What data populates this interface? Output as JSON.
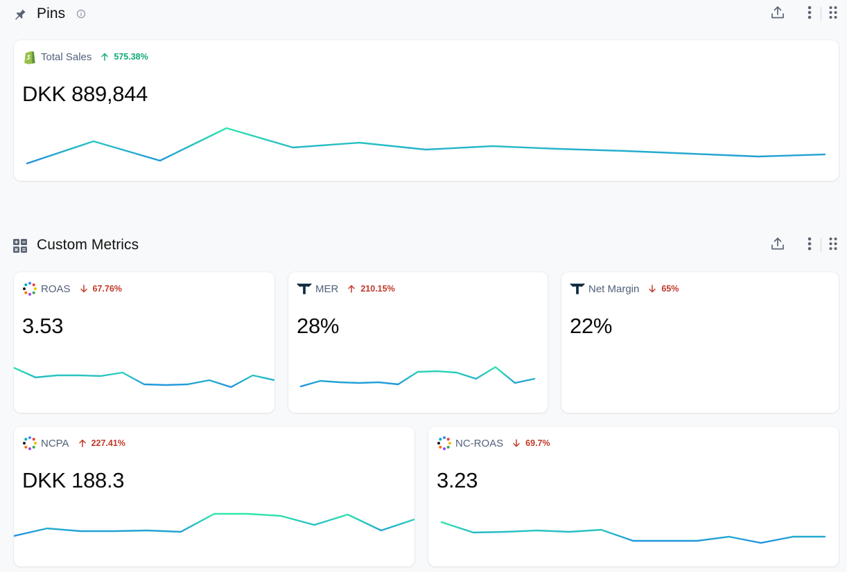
{
  "pins": {
    "title": "Pins",
    "icons": {
      "section": "pin-icon",
      "info": "info-icon"
    }
  },
  "custom_metrics": {
    "title": "Custom Metrics",
    "icons": {
      "section": "calculator-icon"
    }
  },
  "header_actions": {
    "export_icon": "upload-icon",
    "menu_icon": "kebab-menu-icon",
    "drag_icon": "drag-handle-icon"
  },
  "colors": {
    "spark_start": "#1f8fe0",
    "spark_end": "#2ee6aa",
    "positive": "#12a97a",
    "negative": "#c0392b"
  },
  "metrics": {
    "total_sales": {
      "name": "Total Sales",
      "change": "575.38%",
      "direction": "up",
      "sentiment": "good",
      "value": "DKK 889,844",
      "source_icon": "shopify-icon",
      "trend": [
        236,
        204,
        232,
        185,
        213,
        206,
        216,
        211,
        215,
        218,
        222,
        226,
        223
      ]
    },
    "roas": {
      "name": "ROAS",
      "change": "67.76%",
      "direction": "down",
      "sentiment": "bad",
      "value": "3.53",
      "source_icon": "dots-ring-icon",
      "trend": [
        531,
        545,
        542,
        542,
        543,
        538,
        555,
        556,
        555,
        549,
        559,
        542,
        549
      ]
    },
    "mer": {
      "name": "MER",
      "change": "210.15%",
      "direction": "up",
      "sentiment": "bad",
      "value": "28%",
      "source_icon": "triple-whale-icon",
      "trend": [
        558,
        550,
        552,
        553,
        552,
        555,
        537,
        536,
        538,
        547,
        530,
        553,
        547
      ]
    },
    "net_margin": {
      "name": "Net Margin",
      "change": "65%",
      "direction": "down",
      "sentiment": "bad",
      "value": "22%",
      "source_icon": "triple-whale-icon"
    },
    "ncpa": {
      "name": "NCPA",
      "change": "227.41%",
      "direction": "up",
      "sentiment": "bad",
      "value": "DKK 188.3",
      "source_icon": "dots-ring-icon",
      "trend": [
        774,
        763,
        767,
        767,
        766,
        768,
        742,
        742,
        745,
        758,
        743,
        766,
        750
      ]
    },
    "nc_roas": {
      "name": "NC-ROAS",
      "change": "69.7%",
      "direction": "down",
      "sentiment": "bad",
      "value": "3.23",
      "source_icon": "dots-ring-icon",
      "trend": [
        754,
        769,
        768,
        766,
        768,
        765,
        781,
        781,
        781,
        775,
        784,
        775,
        775
      ]
    }
  }
}
